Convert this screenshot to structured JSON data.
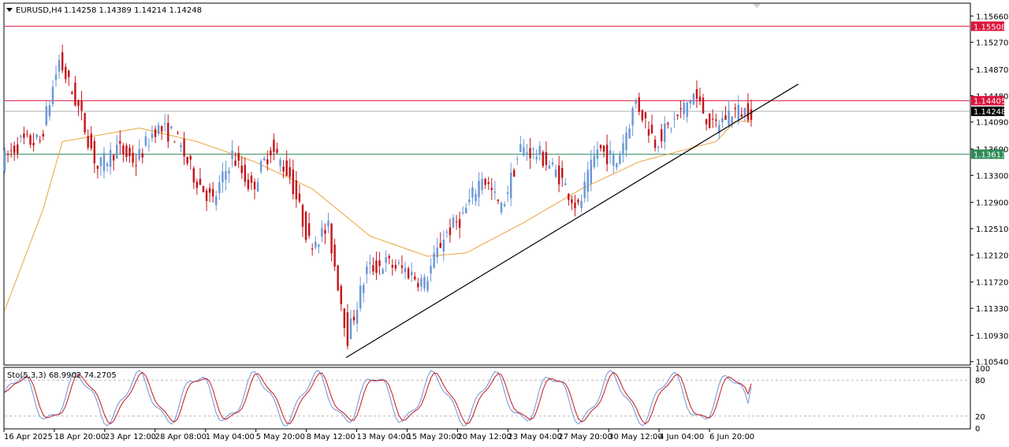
{
  "window": {
    "symbol_label": "EURUSD,H4",
    "ohlc_label": "1.14258 1.14389 1.14214 1.14248",
    "menu_icon": "triangle-down-icon"
  },
  "indicator": {
    "label": "Sto(5,3,3) 68.9902 74.2705",
    "levels": [
      20,
      80
    ],
    "axis_ticks": [
      "100",
      "80",
      "20",
      "0"
    ]
  },
  "price_axis": {
    "ticks": [
      "1.15660",
      "1.15270",
      "1.14870",
      "1.14480",
      "1.14090",
      "1.13690",
      "1.13300",
      "1.12900",
      "1.12510",
      "1.12120",
      "1.11720",
      "1.11330",
      "1.10930",
      "1.10540"
    ],
    "ylim": [
      1.1049,
      1.1585
    ]
  },
  "time_axis": {
    "ticks": [
      "16 Apr 2025",
      "18 Apr 20:00",
      "23 Apr 12:00",
      "28 Apr 08:00",
      "1 May 04:00",
      "5 May 20:00",
      "8 May 12:00",
      "13 May 04:00",
      "15 May 20:00",
      "20 May 12:00",
      "23 May 04:00",
      "27 May 20:00",
      "30 May 12:00",
      "4 Jun 04:00",
      "6 Jun 20:00"
    ]
  },
  "horizontal_lines": [
    {
      "value": 1.15508,
      "label": "1.15508",
      "color": "#dc143c"
    },
    {
      "value": 1.14405,
      "label": "1.14405",
      "color": "#dc143c"
    },
    {
      "value": 1.14248,
      "label": "1.14248",
      "color": "#000000"
    },
    {
      "value": 1.13613,
      "label": "1.13613",
      "color": "#2e8b57"
    }
  ],
  "colors": {
    "bull": "#6a97d6",
    "bear": "#c4161c",
    "ma": "#e8a33c",
    "trendline": "#000000",
    "stoch_main": "#6a97d6",
    "stoch_signal": "#c4161c"
  },
  "chart_data": {
    "type": "candlestick",
    "symbol": "EURUSD",
    "timeframe": "H4",
    "trendline": {
      "from": {
        "x": "12 May 2025",
        "y": 1.106
      },
      "to": {
        "x": "8 Jun 2025",
        "y": 1.1408
      }
    },
    "price_path": [
      {
        "x": "16 Apr 2025",
        "y": 1.135
      },
      {
        "x": "17 Apr 2025",
        "y": 1.138
      },
      {
        "x": "18 Apr 2025",
        "y": 1.138
      },
      {
        "x": "21 Apr 2025",
        "y": 1.15
      },
      {
        "x": "22 Apr 2025",
        "y": 1.143
      },
      {
        "x": "23 Apr 2025",
        "y": 1.134
      },
      {
        "x": "24 Apr 2025",
        "y": 1.137
      },
      {
        "x": "25 Apr 2025",
        "y": 1.135
      },
      {
        "x": "28 Apr 2025",
        "y": 1.14
      },
      {
        "x": "29 Apr 2025",
        "y": 1.139
      },
      {
        "x": "30 Apr 2025",
        "y": 1.133
      },
      {
        "x": "1 May 2025",
        "y": 1.129
      },
      {
        "x": "2 May 2025",
        "y": 1.136
      },
      {
        "x": "5 May 2025",
        "y": 1.131
      },
      {
        "x": "6 May 2025",
        "y": 1.137
      },
      {
        "x": "7 May 2025",
        "y": 1.133
      },
      {
        "x": "8 May 2025",
        "y": 1.123
      },
      {
        "x": "9 May 2025",
        "y": 1.125
      },
      {
        "x": "12 May 2025",
        "y": 1.109
      },
      {
        "x": "13 May 2025",
        "y": 1.119
      },
      {
        "x": "14 May 2025",
        "y": 1.12
      },
      {
        "x": "15 May 2025",
        "y": 1.119
      },
      {
        "x": "16 May 2025",
        "y": 1.117
      },
      {
        "x": "19 May 2025",
        "y": 1.124
      },
      {
        "x": "20 May 2025",
        "y": 1.127
      },
      {
        "x": "21 May 2025",
        "y": 1.133
      },
      {
        "x": "22 May 2025",
        "y": 1.128
      },
      {
        "x": "23 May 2025",
        "y": 1.137
      },
      {
        "x": "26 May 2025",
        "y": 1.136
      },
      {
        "x": "27 May 2025",
        "y": 1.133
      },
      {
        "x": "28 May 2025",
        "y": 1.128
      },
      {
        "x": "29 May 2025",
        "y": 1.137
      },
      {
        "x": "30 May 2025",
        "y": 1.135
      },
      {
        "x": "2 Jun 2025",
        "y": 1.144
      },
      {
        "x": "3 Jun 2025",
        "y": 1.138
      },
      {
        "x": "4 Jun 2025",
        "y": 1.141
      },
      {
        "x": "5 Jun 2025",
        "y": 1.145
      },
      {
        "x": "6 Jun 2025",
        "y": 1.14
      },
      {
        "x": "9 Jun 2025",
        "y": 1.1425
      }
    ],
    "ma_path": [
      {
        "x": "16 Apr 2025",
        "y": 1.113
      },
      {
        "x": "18 Apr 2025",
        "y": 1.128
      },
      {
        "x": "21 Apr 2025",
        "y": 1.138
      },
      {
        "x": "25 Apr 2025",
        "y": 1.14
      },
      {
        "x": "30 Apr 2025",
        "y": 1.138
      },
      {
        "x": "5 May 2025",
        "y": 1.135
      },
      {
        "x": "8 May 2025",
        "y": 1.131
      },
      {
        "x": "13 May 2025",
        "y": 1.124
      },
      {
        "x": "16 May 2025",
        "y": 1.121
      },
      {
        "x": "20 May 2025",
        "y": 1.1215
      },
      {
        "x": "23 May 2025",
        "y": 1.126
      },
      {
        "x": "28 May 2025",
        "y": 1.131
      },
      {
        "x": "2 Jun 2025",
        "y": 1.135
      },
      {
        "x": "6 Jun 2025",
        "y": 1.138
      },
      {
        "x": "9 Jun 2025",
        "y": 1.141
      }
    ],
    "stochastic": {
      "main": 68.9902,
      "signal": 74.2705,
      "ylim": [
        0,
        100
      ]
    }
  }
}
